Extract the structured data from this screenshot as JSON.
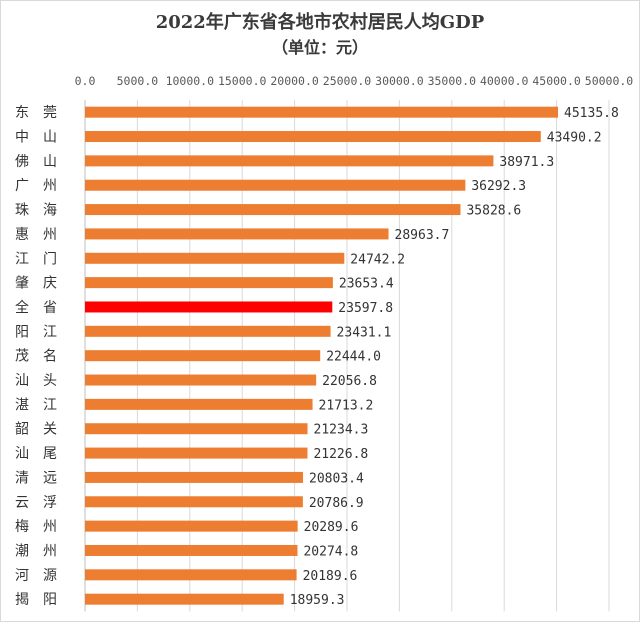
{
  "chart_data": {
    "type": "bar",
    "orientation": "horizontal",
    "title": "2022年广东省各地市农村居民人均GDP",
    "subtitle": "（单位：元）",
    "xlabel": "",
    "ylabel": "",
    "xlim": [
      0,
      50000
    ],
    "tick_values": [
      0,
      5000,
      10000,
      15000,
      20000,
      25000,
      30000,
      35000,
      40000,
      45000,
      50000
    ],
    "tick_labels": [
      "0.0",
      "5000.0",
      "10000.0",
      "15000.0",
      "20000.0",
      "25000.0",
      "30000.0",
      "35000.0",
      "40000.0",
      "45000.0",
      "50000.0"
    ],
    "grid": true,
    "legend": "none",
    "categories": [
      "东　莞",
      "中　山",
      "佛　山",
      "广　州",
      "珠　海",
      "惠　州",
      "江　门",
      "肇　庆",
      "全　省",
      "阳　江",
      "茂　名",
      "汕　头",
      "湛　江",
      "韶　关",
      "汕　尾",
      "清　远",
      "云　浮",
      "梅　州",
      "潮　州",
      "河　源",
      "揭　阳"
    ],
    "values": [
      45135.8,
      43490.2,
      38971.3,
      36292.3,
      35828.6,
      28963.7,
      24742.2,
      23653.4,
      23597.8,
      23431.1,
      22444.0,
      22056.8,
      21713.2,
      21234.3,
      21226.8,
      20803.4,
      20786.9,
      20289.6,
      20274.8,
      20189.6,
      18959.3
    ],
    "value_labels": [
      "45135.8",
      "43490.2",
      "38971.3",
      "36292.3",
      "35828.6",
      "28963.7",
      "24742.2",
      "23653.4",
      "23597.8",
      "23431.1",
      "22444.0",
      "22056.8",
      "21713.2",
      "21234.3",
      "21226.8",
      "20803.4",
      "20786.9",
      "20289.6",
      "20274.8",
      "20189.6",
      "18959.3"
    ],
    "highlight": "全　省",
    "colors": {
      "bar": "#ED7D31",
      "highlight": "#FF0000",
      "grid": "#D9D9D9",
      "axis": "#BFBFBF"
    }
  }
}
